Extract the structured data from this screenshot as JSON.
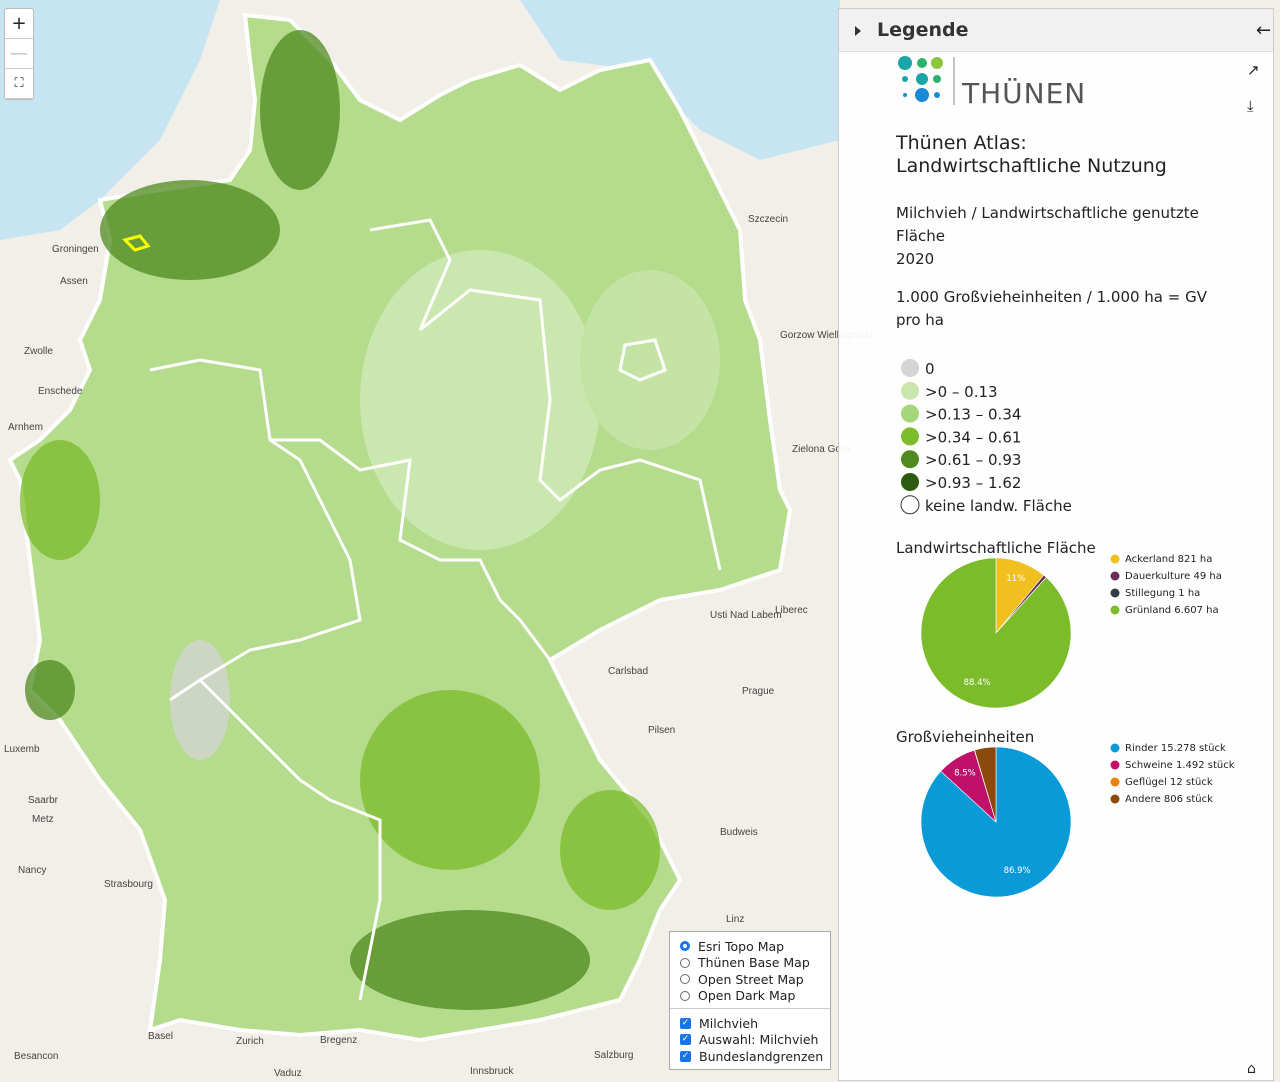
{
  "zoom": [
    "+",
    "—"
  ],
  "map_labels": [
    "Groningen",
    "Assen",
    "Zwolle",
    "Enschede",
    "Arnhem",
    "Szczecin",
    "Gorzow Wielkopolski",
    "Zielona Gora",
    "Usti Nad Labem",
    "Liberec",
    "Carlsbad",
    "Prague",
    "Pilsen",
    "Budweis",
    "Linz",
    "Salzburg",
    "Innsbruck",
    "Basel",
    "Zurich",
    "Bregenz",
    "Besancon",
    "Nancy",
    "Strasbourg",
    "Metz",
    "Saarbr",
    "Luxemb",
    "Vaduz"
  ],
  "legend_panel": {
    "header": "Legende",
    "logo": "THÜNEN",
    "title_lines": [
      "Thünen Atlas:",
      "Landwirtschaftliche Nutzung"
    ],
    "subtitle_lines": [
      "Milchvieh / Landwirtschaftliche genutzte",
      "Fläche",
      "2020"
    ],
    "unit_lines": [
      "1.000 Großvieheinheiten / 1.000 ha = GV",
      "pro ha"
    ],
    "classes": [
      {
        "label": "0",
        "color": "#d4d4d4"
      },
      {
        "label": ">0 – 0.13",
        "color": "#c9e6ad"
      },
      {
        "label": ">0.13 – 0.34",
        "color": "#a5d67a"
      },
      {
        "label": ">0.34 – 0.61",
        "color": "#7cbb2a"
      },
      {
        "label": ">0.61 – 0.93",
        "color": "#4e8a1e"
      },
      {
        "label": ">0.93 – 1.62",
        "color": "#2d5a12"
      },
      {
        "label": "keine landw. Fläche",
        "color": "#ffffff"
      }
    ]
  },
  "chart_data": [
    {
      "type": "pie",
      "title": "Landwirtschaftliche Fläche",
      "categories": [
        "Ackerland 821 ha",
        "Dauerkulture 49 ha",
        "Stillegung 1 ha",
        "Grünland 6.607 ha"
      ],
      "values": [
        11,
        0.7,
        0.01,
        88.4
      ],
      "value_labels": [
        "11%",
        null,
        null,
        "88.4%"
      ],
      "colors": [
        "#f0c020",
        "#6b2c5a",
        "#2f3e46",
        "#7cbb2a"
      ]
    },
    {
      "type": "pie",
      "title": "Großvieheinheiten",
      "categories": [
        "Rinder 15.278 stück",
        "Schweine 1.492 stück",
        "Geflügel 12 stück",
        "Andere 806 stück"
      ],
      "values": [
        86.9,
        8.5,
        0.07,
        4.6
      ],
      "value_labels": [
        "86.9%",
        "8.5%",
        null,
        null
      ],
      "colors": [
        "#0a9ad8",
        "#c0106a",
        "#e8820c",
        "#8b4a0c"
      ]
    }
  ],
  "layers": {
    "basemaps": [
      "Esri Topo Map",
      "Thünen Base Map",
      "Open Street Map",
      "Open Dark Map"
    ],
    "overlays": [
      "Milchvieh",
      "Auswahl: Milchvieh",
      "Bundeslandgrenzen"
    ]
  }
}
